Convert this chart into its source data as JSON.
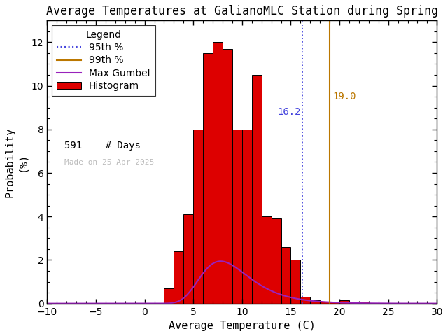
{
  "title": "Average Temperatures at GalianoMLC Station during Spring",
  "xlabel": "Average Temperature (C)",
  "ylabel": "Probability\n(%)",
  "xlim": [
    -10,
    30
  ],
  "ylim": [
    0,
    13
  ],
  "xticks": [
    -10,
    -5,
    0,
    5,
    10,
    15,
    20,
    25,
    30
  ],
  "yticks": [
    0,
    2,
    4,
    6,
    8,
    10,
    12
  ],
  "bar_lefts": [
    2,
    3,
    4,
    5,
    6,
    7,
    8,
    9,
    10,
    11,
    12,
    13,
    14,
    15,
    16,
    17,
    18,
    19,
    20,
    21,
    22
  ],
  "bar_heights": [
    0.7,
    2.4,
    4.1,
    8.0,
    11.5,
    12.0,
    11.7,
    8.0,
    8.0,
    10.5,
    4.0,
    3.9,
    2.6,
    2.0,
    0.3,
    0.15,
    0.1,
    0.1,
    0.15,
    0.05,
    0.1
  ],
  "hist_color": "#dd0000",
  "hist_edgecolor": "#000000",
  "p95": 16.2,
  "p99": 19.0,
  "n_days": 591,
  "gumbel_mu": 7.8,
  "gumbel_beta": 2.5,
  "gumbel_amplitude": 13.2,
  "p95_color": "#4444dd",
  "p99_color": "#bb7700",
  "gumbel_color": "#9922bb",
  "watermark": "Made on 25 Apr 2025",
  "watermark_color": "#bbbbbb",
  "background_color": "#ffffff",
  "title_fontsize": 12,
  "axis_fontsize": 11,
  "tick_fontsize": 10,
  "legend_fontsize": 10
}
